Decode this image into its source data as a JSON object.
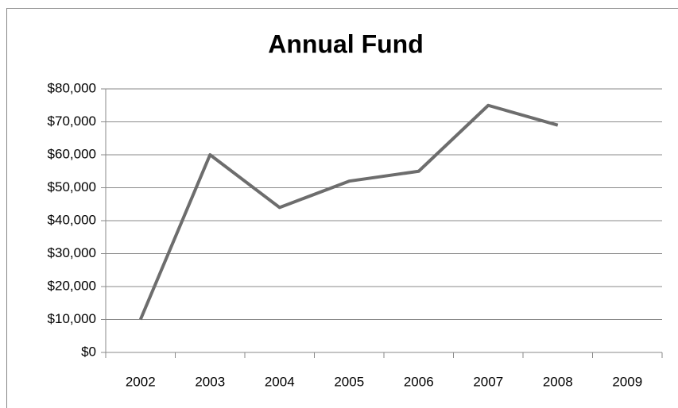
{
  "chart_data": {
    "type": "line",
    "title": "Annual Fund",
    "categories": [
      "2002",
      "2003",
      "2004",
      "2005",
      "2006",
      "2007",
      "2008",
      "2009"
    ],
    "series": [
      {
        "name": "Annual Fund",
        "color": "#6d6d6d",
        "values": [
          10000,
          60000,
          44000,
          52000,
          55000,
          75000,
          69000,
          null
        ]
      }
    ],
    "ylim": [
      0,
      80000
    ],
    "yticks": [
      {
        "value": 0,
        "label": "$0"
      },
      {
        "value": 10000,
        "label": "$10,000"
      },
      {
        "value": 20000,
        "label": "$20,000"
      },
      {
        "value": 30000,
        "label": "$30,000"
      },
      {
        "value": 40000,
        "label": "$40,000"
      },
      {
        "value": 50000,
        "label": "$50,000"
      },
      {
        "value": 60000,
        "label": "$60,000"
      },
      {
        "value": 70000,
        "label": "$70,000"
      },
      {
        "value": 80000,
        "label": "$80,000"
      }
    ],
    "grid": true
  }
}
